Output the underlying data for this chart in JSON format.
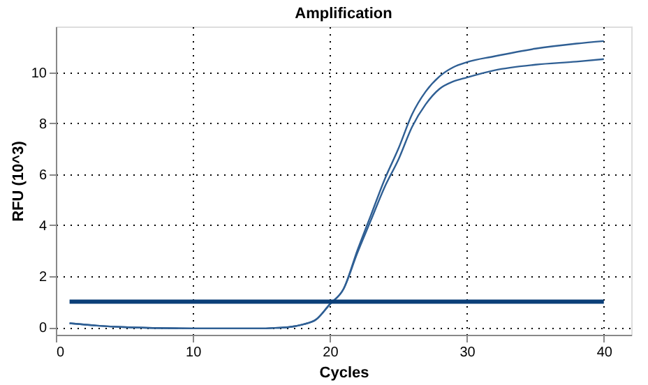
{
  "chart_data": {
    "type": "line",
    "title": "Amplification",
    "xlabel": "Cycles",
    "ylabel": "RFU (10^3)",
    "xlim": [
      0,
      42
    ],
    "xticks": [
      0,
      10,
      20,
      30,
      40
    ],
    "ylim": [
      -0.3,
      11.8
    ],
    "yticks": [
      0,
      2,
      4,
      6,
      8,
      10
    ],
    "grid": true,
    "legend": false,
    "marker": "none",
    "line_style": "solid",
    "ref_lines": [
      {
        "axis": "y",
        "value": 1,
        "color": "#0b3f78"
      }
    ],
    "series": [
      {
        "color": "#2f5f94",
        "x": [
          1,
          3,
          5,
          8,
          10,
          13,
          15,
          16,
          17,
          18,
          19,
          20,
          21,
          22,
          23,
          24,
          25,
          26,
          27,
          28,
          29,
          30,
          32,
          35,
          38,
          40
        ],
        "values": [
          0.15,
          0.06,
          0.0,
          -0.04,
          -0.05,
          -0.05,
          -0.05,
          -0.03,
          0.0,
          0.1,
          0.3,
          0.9,
          1.5,
          3.0,
          4.4,
          5.8,
          7.0,
          8.35,
          9.25,
          9.84,
          10.2,
          10.4,
          10.63,
          10.93,
          11.13,
          11.23
        ]
      },
      {
        "color": "#2f5f94",
        "x": [
          1,
          3,
          5,
          8,
          10,
          13,
          15,
          16,
          17,
          18,
          19,
          20,
          21,
          22,
          23,
          24,
          25,
          26,
          27,
          28,
          29,
          30,
          32,
          35,
          38,
          40
        ],
        "values": [
          0.15,
          0.06,
          0.0,
          -0.04,
          -0.05,
          -0.05,
          -0.05,
          -0.03,
          0.0,
          0.1,
          0.3,
          0.9,
          1.5,
          2.9,
          4.2,
          5.5,
          6.57,
          7.86,
          8.75,
          9.35,
          9.64,
          9.8,
          10.08,
          10.3,
          10.42,
          10.52
        ]
      }
    ]
  }
}
